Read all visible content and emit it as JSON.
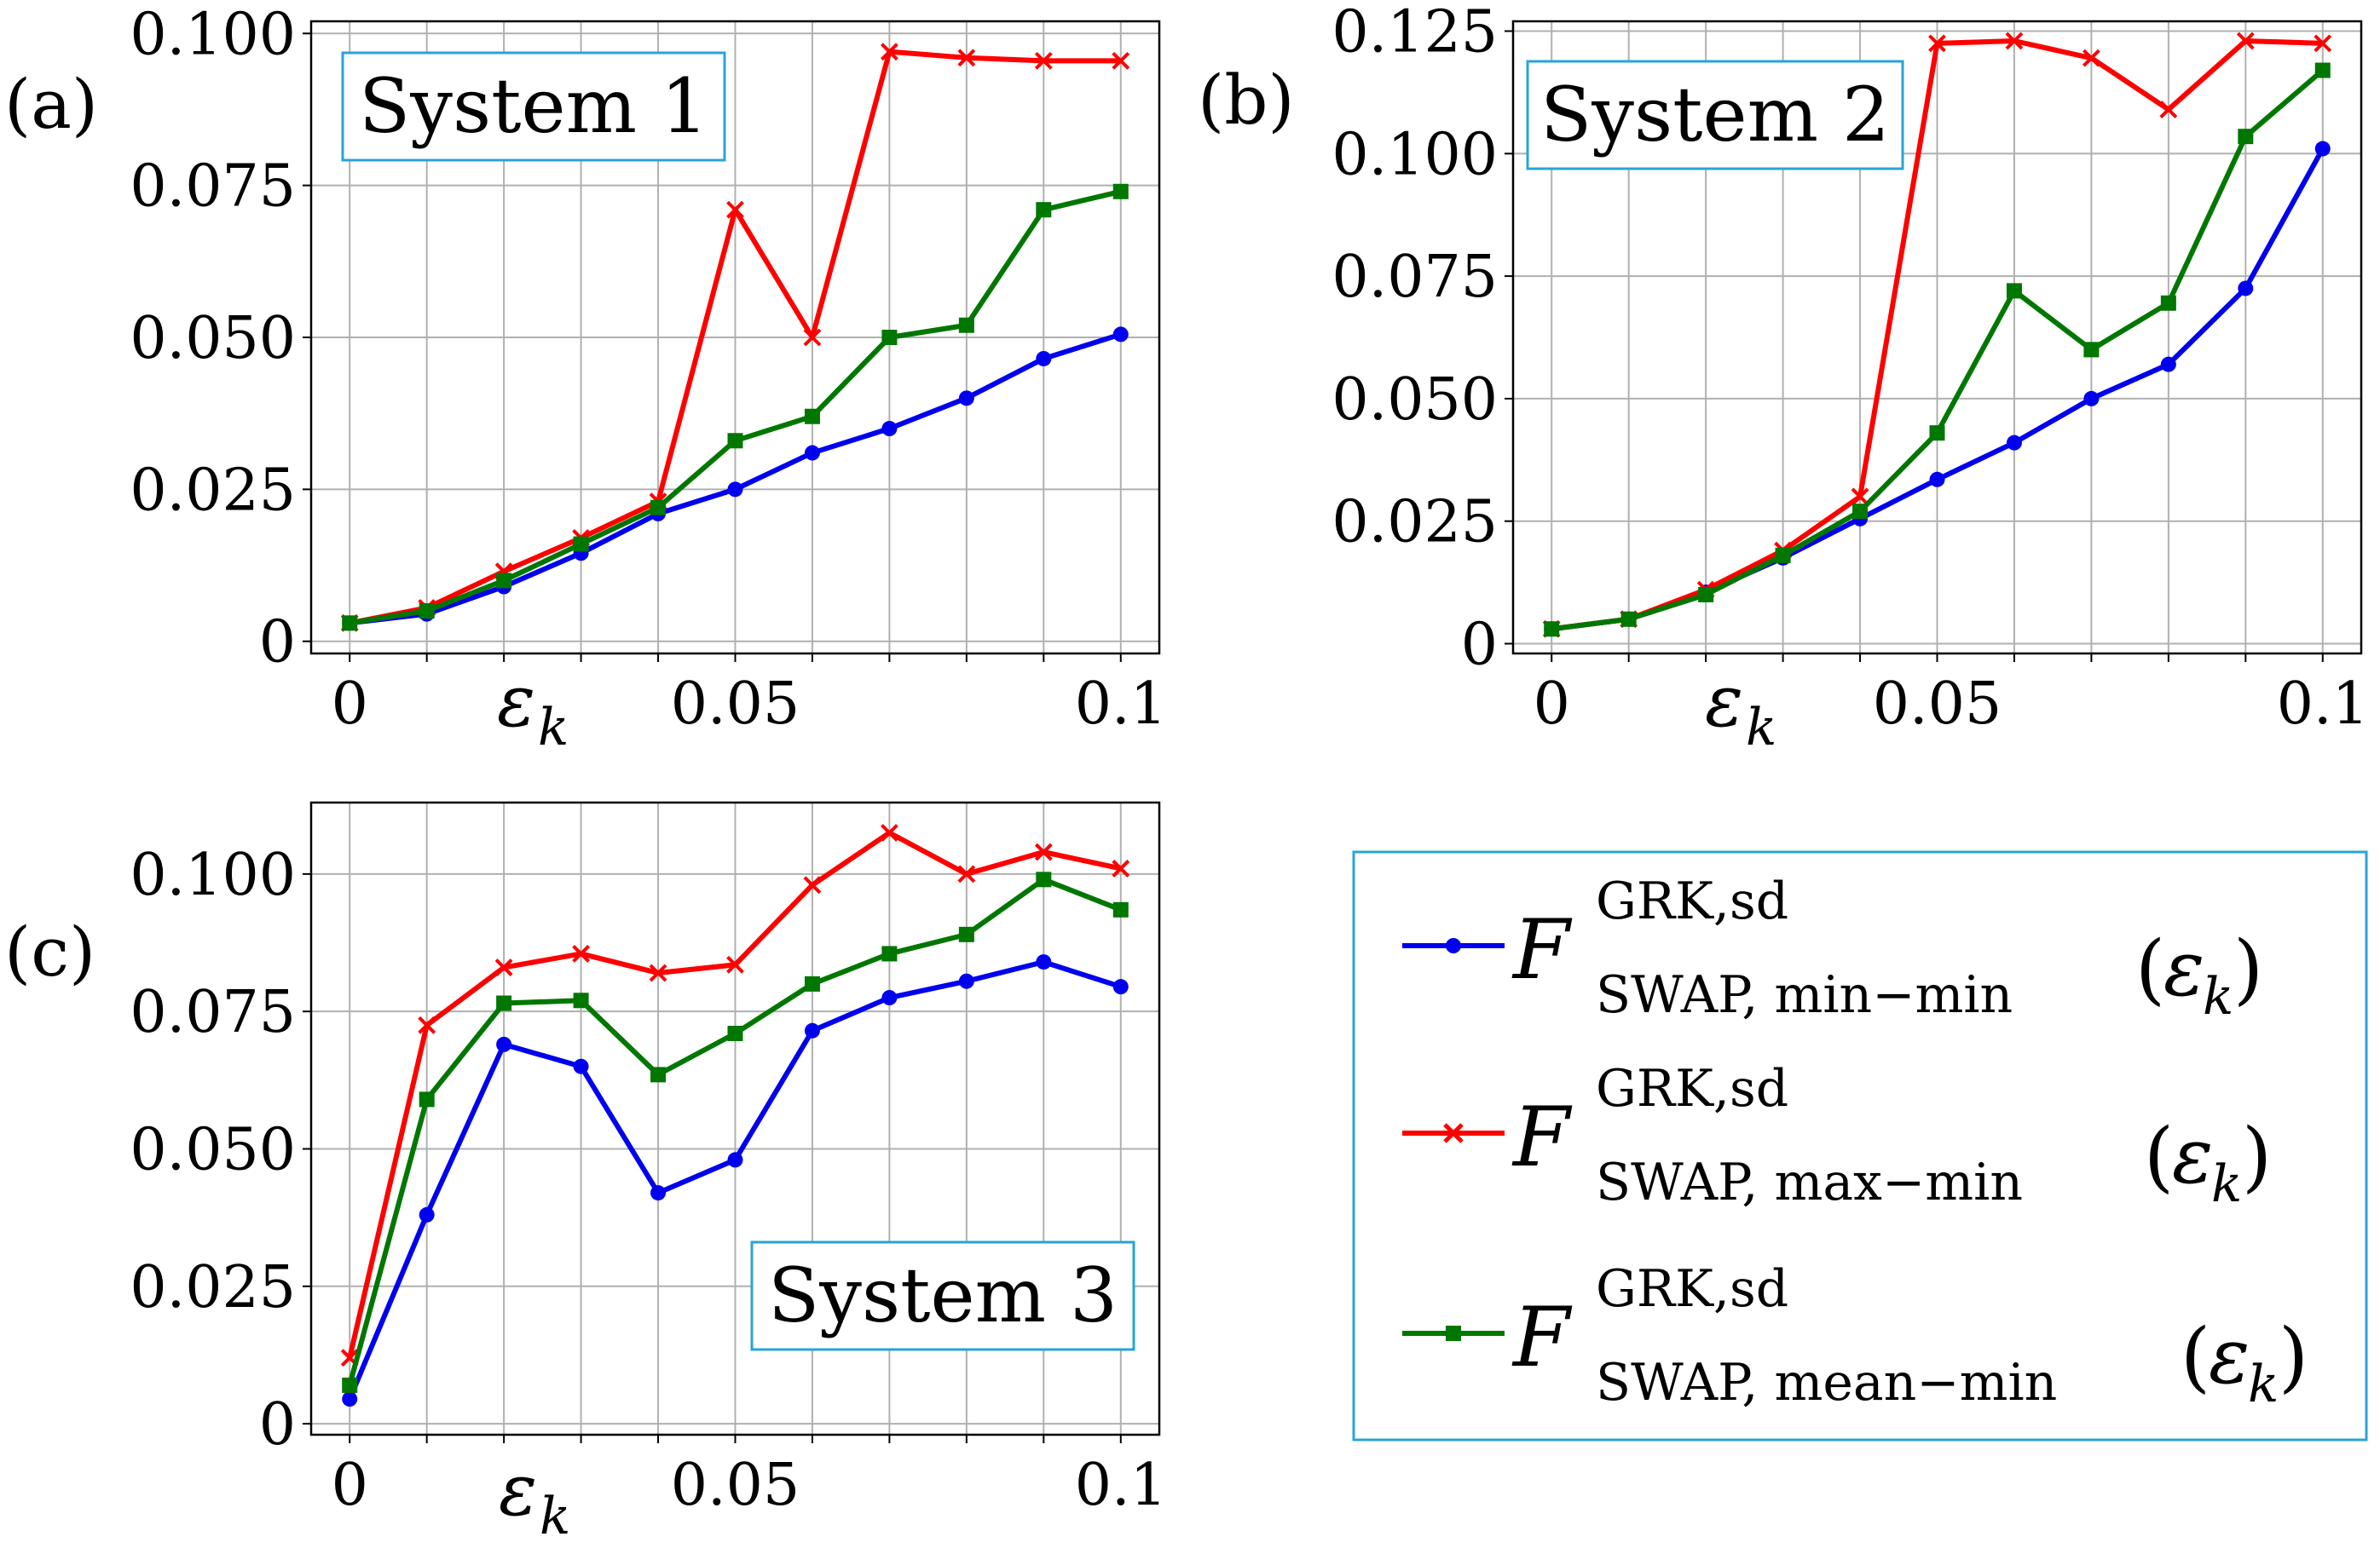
{
  "chart_data": [
    {
      "type": "line",
      "panel_label": "(a)",
      "title": "System 1",
      "title_position": "top-left",
      "xlabel": "ε",
      "xlabel_sub": "k",
      "x": [
        0,
        0.01,
        0.02,
        0.03,
        0.04,
        0.05,
        0.06,
        0.07,
        0.08,
        0.09,
        0.1
      ],
      "xlim": [
        -0.005,
        0.105
      ],
      "ylim": [
        -0.002,
        0.102
      ],
      "xticks": [
        0,
        0.05,
        0.1
      ],
      "xtick_labels": [
        "0",
        "0.05",
        "0.1"
      ],
      "yticks": [
        0,
        0.025,
        0.05,
        0.075,
        0.1
      ],
      "ytick_labels": [
        "0",
        "0.025",
        "0.050",
        "0.075",
        "0.100"
      ],
      "grid": true,
      "series": [
        {
          "name": "min-min",
          "color": "#0000ee",
          "marker": "circle",
          "values": [
            0.003,
            0.0045,
            0.009,
            0.0145,
            0.021,
            0.025,
            0.031,
            0.035,
            0.04,
            0.0465,
            0.0505
          ]
        },
        {
          "name": "max-min",
          "color": "#ff0000",
          "marker": "x",
          "values": [
            0.003,
            0.0055,
            0.0115,
            0.017,
            0.023,
            0.071,
            0.05,
            0.097,
            0.096,
            0.0955,
            0.0955
          ]
        },
        {
          "name": "mean-min",
          "color": "#007700",
          "marker": "square",
          "values": [
            0.003,
            0.005,
            0.01,
            0.016,
            0.022,
            0.033,
            0.037,
            0.05,
            0.052,
            0.071,
            0.074
          ]
        }
      ]
    },
    {
      "type": "line",
      "panel_label": "(b)",
      "title": "System 2",
      "title_position": "top-left",
      "xlabel": "ε",
      "xlabel_sub": "k",
      "x": [
        0,
        0.01,
        0.02,
        0.03,
        0.04,
        0.05,
        0.06,
        0.07,
        0.08,
        0.09,
        0.1
      ],
      "xlim": [
        -0.005,
        0.105
      ],
      "ylim": [
        -0.002,
        0.127
      ],
      "xticks": [
        0,
        0.05,
        0.1
      ],
      "xtick_labels": [
        "0",
        "0.05",
        "0.1"
      ],
      "yticks": [
        0,
        0.025,
        0.05,
        0.075,
        0.1,
        0.125
      ],
      "ytick_labels": [
        "0",
        "0.025",
        "0.050",
        "0.075",
        "0.100",
        "0.125"
      ],
      "grid": true,
      "series": [
        {
          "name": "min-min",
          "color": "#0000ee",
          "marker": "circle",
          "values": [
            0.003,
            0.005,
            0.0105,
            0.0175,
            0.0255,
            0.0335,
            0.041,
            0.05,
            0.057,
            0.0725,
            0.101
          ]
        },
        {
          "name": "max-min",
          "color": "#ff0000",
          "marker": "x",
          "values": [
            0.003,
            0.005,
            0.011,
            0.019,
            0.03,
            0.1225,
            0.123,
            0.1195,
            0.109,
            0.123,
            0.1225
          ]
        },
        {
          "name": "mean-min",
          "color": "#007700",
          "marker": "square",
          "values": [
            0.003,
            0.005,
            0.01,
            0.018,
            0.027,
            0.043,
            0.072,
            0.06,
            0.0695,
            0.1035,
            0.117
          ]
        }
      ]
    },
    {
      "type": "line",
      "panel_label": "(c)",
      "title": "System 3",
      "title_position": "bottom-right",
      "xlabel": "ε",
      "xlabel_sub": "k",
      "x": [
        0,
        0.01,
        0.02,
        0.03,
        0.04,
        0.05,
        0.06,
        0.07,
        0.08,
        0.09,
        0.1
      ],
      "xlim": [
        -0.005,
        0.105
      ],
      "ylim": [
        -0.002,
        0.113
      ],
      "xticks": [
        0,
        0.05,
        0.1
      ],
      "xtick_labels": [
        "0",
        "0.05",
        "0.1"
      ],
      "yticks": [
        0,
        0.025,
        0.05,
        0.075,
        0.1
      ],
      "ytick_labels": [
        "0",
        "0.025",
        "0.050",
        "0.075",
        "0.100"
      ],
      "grid": true,
      "series": [
        {
          "name": "min-min",
          "color": "#0000ee",
          "marker": "circle",
          "values": [
            0.0045,
            0.038,
            0.069,
            0.065,
            0.042,
            0.048,
            0.0715,
            0.0775,
            0.0805,
            0.084,
            0.0795
          ]
        },
        {
          "name": "max-min",
          "color": "#ff0000",
          "marker": "x",
          "values": [
            0.012,
            0.0725,
            0.083,
            0.0855,
            0.082,
            0.0835,
            0.098,
            0.1075,
            0.1,
            0.104,
            0.101
          ]
        },
        {
          "name": "mean-min",
          "color": "#007700",
          "marker": "square",
          "values": [
            0.007,
            0.059,
            0.0765,
            0.077,
            0.0635,
            0.071,
            0.08,
            0.0855,
            0.089,
            0.099,
            0.0935
          ]
        }
      ]
    }
  ],
  "legend": {
    "position": "bottom-right",
    "border_color": "#29a3d9",
    "entries": [
      {
        "series": "min-min",
        "color": "#0000ee",
        "marker": "circle",
        "symbol": "F",
        "superscript": "GRK,sd",
        "subscript": "SWAP, min−min",
        "argument": "ε",
        "argument_sub": "k"
      },
      {
        "series": "max-min",
        "color": "#ff0000",
        "marker": "x",
        "symbol": "F",
        "superscript": "GRK,sd",
        "subscript": "SWAP, max−min",
        "argument": "ε",
        "argument_sub": "k"
      },
      {
        "series": "mean-min",
        "color": "#007700",
        "marker": "square",
        "symbol": "F",
        "superscript": "GRK,sd",
        "subscript": "SWAP, mean−min",
        "argument": "ε",
        "argument_sub": "k"
      }
    ]
  }
}
